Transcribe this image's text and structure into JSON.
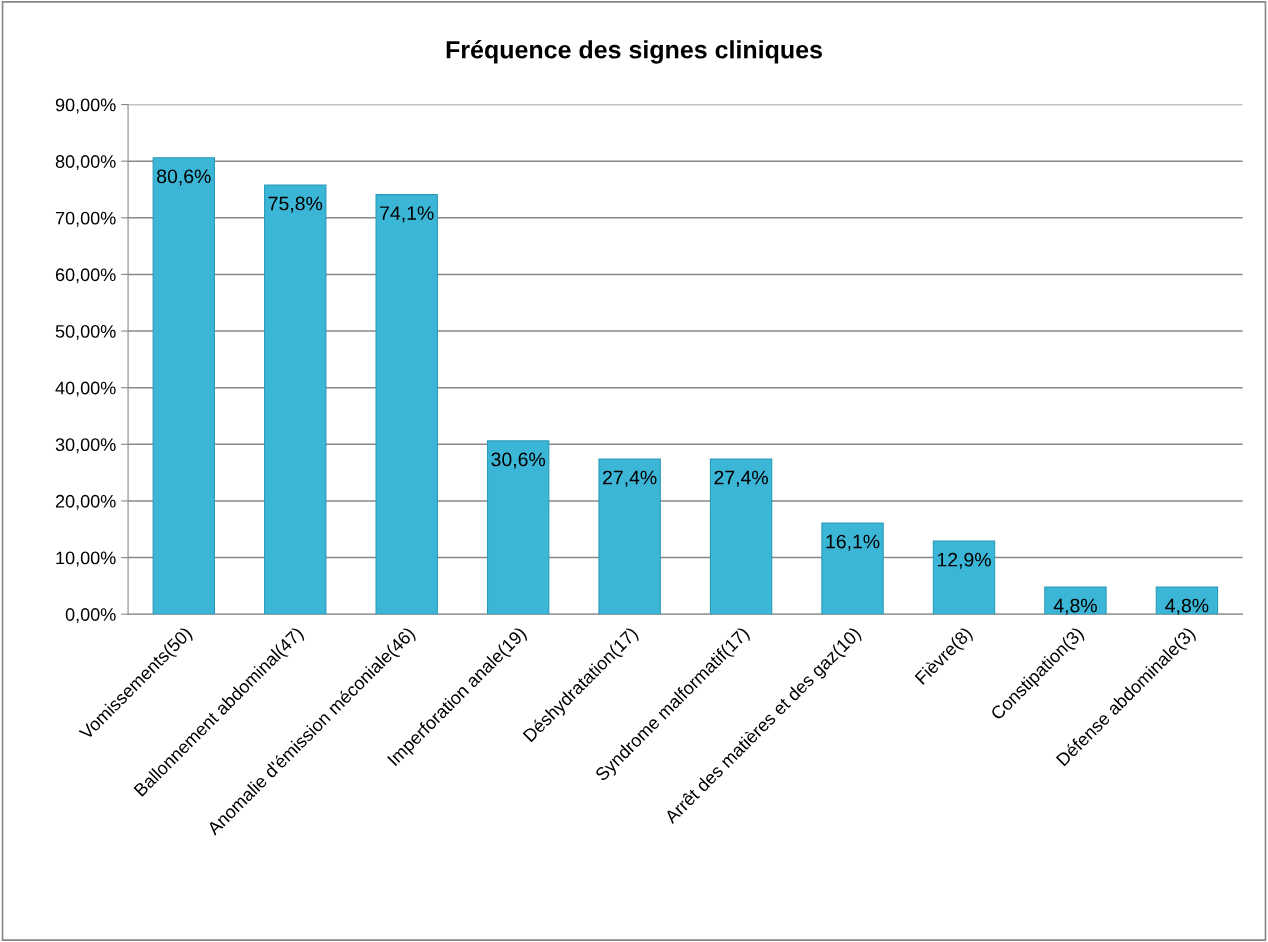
{
  "chart_data": {
    "type": "bar",
    "title": "Fréquence des signes cliniques",
    "categories": [
      "Vomissements(50)",
      "Ballonnement abdominal(47)",
      "Anomalie d'émission méconiale(46)",
      "Imperforation anale(19)",
      "Déshydratation(17)",
      "Syndrome malformatif(17)",
      "Arrêt des matières et des gaz(10)",
      "Fièvre(8)",
      "Constipation(3)",
      "Défense abdominale(3)"
    ],
    "values": [
      80.6,
      75.8,
      74.1,
      30.6,
      27.4,
      27.4,
      16.1,
      12.9,
      4.8,
      4.8
    ],
    "value_labels": [
      "80,6%",
      "75,8%",
      "74,1%",
      "30,6%",
      "27,4%",
      "27,4%",
      "16,1%",
      "12,9%",
      "4,8%",
      "4,8%"
    ],
    "color": "#3cb6d6",
    "ylim": [
      0,
      90
    ],
    "yticks": [
      {
        "value": 0,
        "label": "0,00%"
      },
      {
        "value": 10,
        "label": "10,00%"
      },
      {
        "value": 20,
        "label": "20,00%"
      },
      {
        "value": 30,
        "label": "30,00%"
      },
      {
        "value": 40,
        "label": "40,00%"
      },
      {
        "value": 50,
        "label": "50,00%"
      },
      {
        "value": 60,
        "label": "60,00%"
      },
      {
        "value": 70,
        "label": "70,00%"
      },
      {
        "value": 80,
        "label": "80,00%"
      },
      {
        "value": 90,
        "label": "90,00%"
      }
    ],
    "grid": "y",
    "legend": false
  }
}
